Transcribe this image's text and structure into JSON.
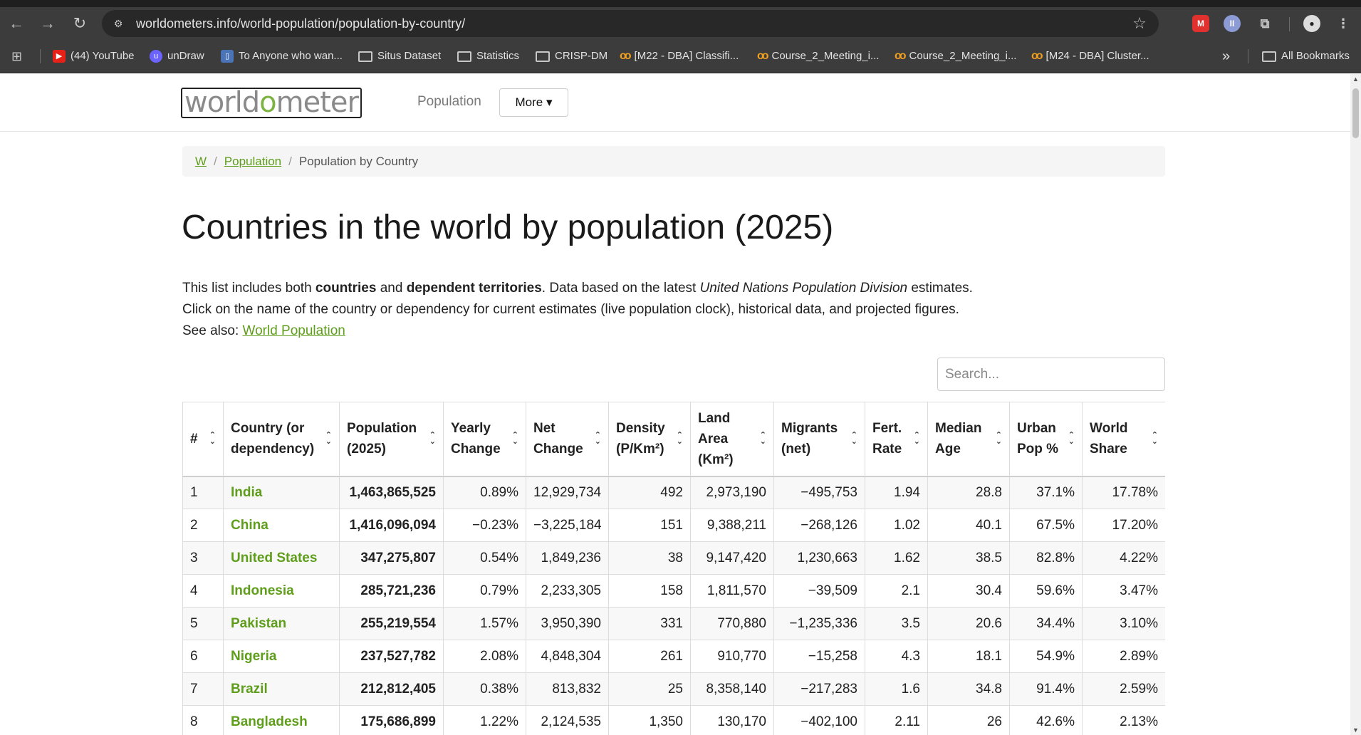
{
  "browser": {
    "url": "worldometers.info/world-population/population-by-country/",
    "bookmarks": [
      {
        "label": "(44) YouTube",
        "icon": "youtube-icon"
      },
      {
        "label": "unDraw",
        "icon": "undraw-icon"
      },
      {
        "label": "To Anyone who wan...",
        "icon": "page-icon"
      },
      {
        "label": "Situs Dataset",
        "icon": "folder-icon"
      },
      {
        "label": "Statistics",
        "icon": "folder-icon"
      },
      {
        "label": "CRISP-DM",
        "icon": "folder-icon"
      },
      {
        "label": "[M22 - DBA] Classifi...",
        "icon": "coursera-icon"
      },
      {
        "label": "Course_2_Meeting_i...",
        "icon": "coursera-icon"
      },
      {
        "label": "Course_2_Meeting_i...",
        "icon": "coursera-icon"
      },
      {
        "label": "[M24 - DBA] Cluster...",
        "icon": "coursera-icon"
      }
    ],
    "overflow_label": "»",
    "all_bookmarks_label": "All Bookmarks"
  },
  "header": {
    "logo_text": "worldometer",
    "nav_population": "Population",
    "more_label": "More ▾"
  },
  "breadcrumb": {
    "home": "W",
    "population": "Population",
    "current": "Population by Country"
  },
  "page": {
    "title": "Countries in the world by population (2025)",
    "intro_1a": "This list includes both ",
    "intro_1b": "countries",
    "intro_1c": " and ",
    "intro_1d": "dependent territories",
    "intro_1e": ". Data based on the latest ",
    "intro_1f": "United Nations Population Division",
    "intro_1g": " estimates.",
    "intro_2": "Click on the name of the country or dependency for current estimates (live population clock), historical data, and projected figures.",
    "see_also": "See also: ",
    "see_also_link": "World Population",
    "search_placeholder": "Search..."
  },
  "table": {
    "columns": [
      "#",
      "Country (or dependency)",
      "Population (2025)",
      "Yearly Change",
      "Net Change",
      "Density (P/Km²)",
      "Land Area (Km²)",
      "Migrants (net)",
      "Fert. Rate",
      "Median Age",
      "Urban Pop %",
      "World Share"
    ],
    "rows": [
      [
        "1",
        "India",
        "1,463,865,525",
        "0.89%",
        "12,929,734",
        "492",
        "2,973,190",
        "−495,753",
        "1.94",
        "28.8",
        "37.1%",
        "17.78%"
      ],
      [
        "2",
        "China",
        "1,416,096,094",
        "−0.23%",
        "−3,225,184",
        "151",
        "9,388,211",
        "−268,126",
        "1.02",
        "40.1",
        "67.5%",
        "17.20%"
      ],
      [
        "3",
        "United States",
        "347,275,807",
        "0.54%",
        "1,849,236",
        "38",
        "9,147,420",
        "1,230,663",
        "1.62",
        "38.5",
        "82.8%",
        "4.22%"
      ],
      [
        "4",
        "Indonesia",
        "285,721,236",
        "0.79%",
        "2,233,305",
        "158",
        "1,811,570",
        "−39,509",
        "2.1",
        "30.4",
        "59.6%",
        "3.47%"
      ],
      [
        "5",
        "Pakistan",
        "255,219,554",
        "1.57%",
        "3,950,390",
        "331",
        "770,880",
        "−1,235,336",
        "3.5",
        "20.6",
        "34.4%",
        "3.10%"
      ],
      [
        "6",
        "Nigeria",
        "237,527,782",
        "2.08%",
        "4,848,304",
        "261",
        "910,770",
        "−15,258",
        "4.3",
        "18.1",
        "54.9%",
        "2.89%"
      ],
      [
        "7",
        "Brazil",
        "212,812,405",
        "0.38%",
        "813,832",
        "25",
        "8,358,140",
        "−217,283",
        "1.6",
        "34.8",
        "91.4%",
        "2.59%"
      ],
      [
        "8",
        "Bangladesh",
        "175,686,899",
        "1.22%",
        "2,124,535",
        "1,350",
        "130,170",
        "−402,100",
        "2.11",
        "26",
        "42.6%",
        "2.13%"
      ]
    ]
  }
}
